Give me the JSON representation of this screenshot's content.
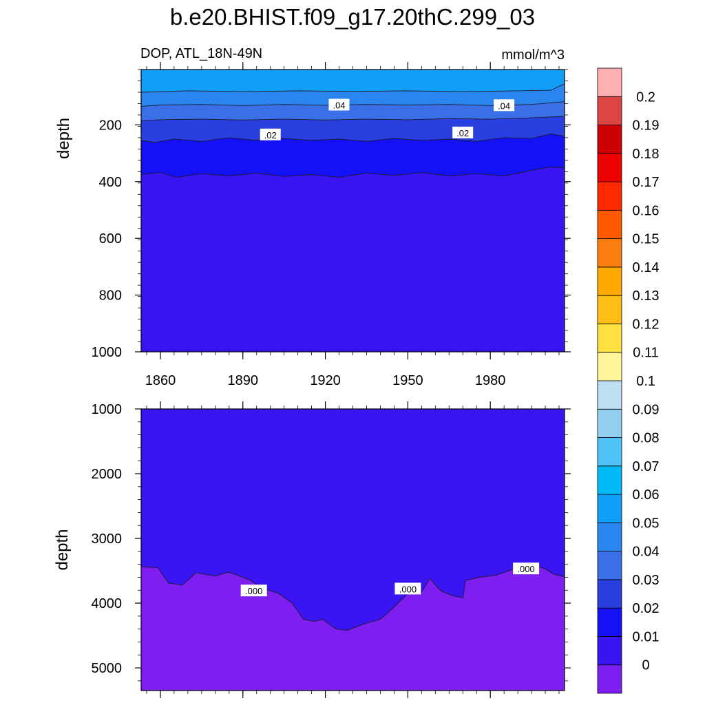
{
  "chart_data": {
    "type": "contour",
    "title": "b.e20.BHIST.f09_g17.20thC.299_03",
    "left_string": "DOP, ATL_18N-49N",
    "right_string": "mmol/m^3",
    "ylabel": "depth",
    "x_ticks": [
      "1860",
      "1890",
      "1920",
      "1950",
      "1980"
    ],
    "x_tick_values": [
      1860,
      1890,
      1920,
      1950,
      1980
    ],
    "xlim": [
      1853,
      2007
    ],
    "panels": [
      {
        "name": "upper",
        "ylim": [
          1000,
          5
        ],
        "y_ticks": [
          "200",
          "400",
          "600",
          "800",
          "1000"
        ],
        "y_tick_values": [
          200,
          400,
          600,
          800,
          1000
        ],
        "contour_labels": [
          {
            "text": ".04",
            "x": 1925,
            "y": 130
          },
          {
            "text": ".04",
            "x": 1985,
            "y": 132
          },
          {
            "text": ".02",
            "x": 1900,
            "y": 235
          },
          {
            "text": ".02",
            "x": 1970,
            "y": 228
          }
        ],
        "contours": [
          {
            "level": 0.05,
            "depths": [
              [
                1853,
                85
              ],
              [
                1870,
                80
              ],
              [
                1890,
                83
              ],
              [
                1910,
                80
              ],
              [
                1930,
                82
              ],
              [
                1950,
                80
              ],
              [
                1970,
                83
              ],
              [
                1990,
                80
              ],
              [
                2002,
                78
              ],
              [
                2007,
                55
              ]
            ]
          },
          {
            "level": 0.04,
            "depths": [
              [
                1853,
                135
              ],
              [
                1860,
                130
              ],
              [
                1875,
                128
              ],
              [
                1890,
                132
              ],
              [
                1905,
                128
              ],
              [
                1920,
                131
              ],
              [
                1935,
                128
              ],
              [
                1950,
                130
              ],
              [
                1965,
                128
              ],
              [
                1980,
                132
              ],
              [
                1995,
                128
              ],
              [
                2007,
                118
              ]
            ]
          },
          {
            "level": 0.03,
            "depths": [
              [
                1853,
                185
              ],
              [
                1860,
                182
              ],
              [
                1875,
                180
              ],
              [
                1890,
                183
              ],
              [
                1905,
                180
              ],
              [
                1920,
                183
              ],
              [
                1935,
                180
              ],
              [
                1950,
                182
              ],
              [
                1965,
                178
              ],
              [
                1980,
                180
              ],
              [
                1995,
                175
              ],
              [
                2007,
                170
              ]
            ]
          },
          {
            "level": 0.02,
            "depths": [
              [
                1853,
                255
              ],
              [
                1858,
                262
              ],
              [
                1865,
                250
              ],
              [
                1875,
                258
              ],
              [
                1885,
                245
              ],
              [
                1895,
                255
              ],
              [
                1905,
                248
              ],
              [
                1915,
                255
              ],
              [
                1925,
                250
              ],
              [
                1935,
                258
              ],
              [
                1945,
                248
              ],
              [
                1955,
                255
              ],
              [
                1965,
                250
              ],
              [
                1975,
                258
              ],
              [
                1985,
                245
              ],
              [
                1995,
                248
              ],
              [
                2002,
                232
              ],
              [
                2007,
                240
              ]
            ]
          },
          {
            "level": 0.01,
            "depths": [
              [
                1853,
                375
              ],
              [
                1860,
                368
              ],
              [
                1866,
                385
              ],
              [
                1875,
                372
              ],
              [
                1885,
                380
              ],
              [
                1895,
                370
              ],
              [
                1905,
                382
              ],
              [
                1915,
                375
              ],
              [
                1925,
                385
              ],
              [
                1935,
                370
              ],
              [
                1945,
                378
              ],
              [
                1955,
                368
              ],
              [
                1965,
                380
              ],
              [
                1975,
                372
              ],
              [
                1985,
                380
              ],
              [
                1995,
                360
              ],
              [
                2002,
                348
              ],
              [
                2007,
                352
              ]
            ]
          }
        ]
      },
      {
        "name": "lower",
        "ylim": [
          1000,
          5350
        ],
        "y_ticks": [
          "1000",
          "2000",
          "3000",
          "4000",
          "5000"
        ],
        "y_tick_values": [
          1000,
          2000,
          3000,
          4000,
          5000
        ],
        "contour_labels": [
          {
            "text": ".000",
            "x": 1894,
            "y": 3810
          },
          {
            "text": ".000",
            "x": 1950,
            "y": 3780
          },
          {
            "text": ".000",
            "x": 1993,
            "y": 3470
          }
        ],
        "contours": [
          {
            "level": 0.0,
            "depths": [
              [
                1853,
                3440
              ],
              [
                1859,
                3450
              ],
              [
                1863,
                3690
              ],
              [
                1868,
                3720
              ],
              [
                1873,
                3530
              ],
              [
                1880,
                3580
              ],
              [
                1885,
                3520
              ],
              [
                1893,
                3650
              ],
              [
                1897,
                3770
              ],
              [
                1903,
                3850
              ],
              [
                1908,
                4000
              ],
              [
                1912,
                4250
              ],
              [
                1916,
                4280
              ],
              [
                1919,
                4250
              ],
              [
                1924,
                4400
              ],
              [
                1928,
                4420
              ],
              [
                1934,
                4320
              ],
              [
                1940,
                4250
              ],
              [
                1944,
                4100
              ],
              [
                1950,
                3850
              ],
              [
                1955,
                3830
              ],
              [
                1958,
                3620
              ],
              [
                1962,
                3810
              ],
              [
                1966,
                3880
              ],
              [
                1970,
                3920
              ],
              [
                1971,
                3650
              ],
              [
                1976,
                3600
              ],
              [
                1982,
                3570
              ],
              [
                1988,
                3480
              ],
              [
                1994,
                3390
              ],
              [
                2000,
                3470
              ],
              [
                2003,
                3550
              ],
              [
                2007,
                3590
              ]
            ]
          }
        ]
      }
    ],
    "colorbar": {
      "labels": [
        "0",
        "0.01",
        "0.02",
        "0.03",
        "0.04",
        "0.05",
        "0.06",
        "0.07",
        "0.08",
        "0.09",
        "0.1",
        "0.11",
        "0.12",
        "0.13",
        "0.14",
        "0.15",
        "0.16",
        "0.17",
        "0.18",
        "0.19",
        "0.2"
      ],
      "colors": [
        "#7f1ef0",
        "#3a14f2",
        "#1411f7",
        "#2a3fe0",
        "#3a6fe8",
        "#2a86ee",
        "#119ef9",
        "#00bbf7",
        "#4fc3f7",
        "#91cef0",
        "#bfe0f2",
        "#fff59a",
        "#ffe040",
        "#ffbe16",
        "#ffaa00",
        "#fb7f10",
        "#ff5a00",
        "#ff2a00",
        "#ee0000",
        "#cc0000",
        "#dd4444",
        "#ffb0b0"
      ]
    }
  }
}
